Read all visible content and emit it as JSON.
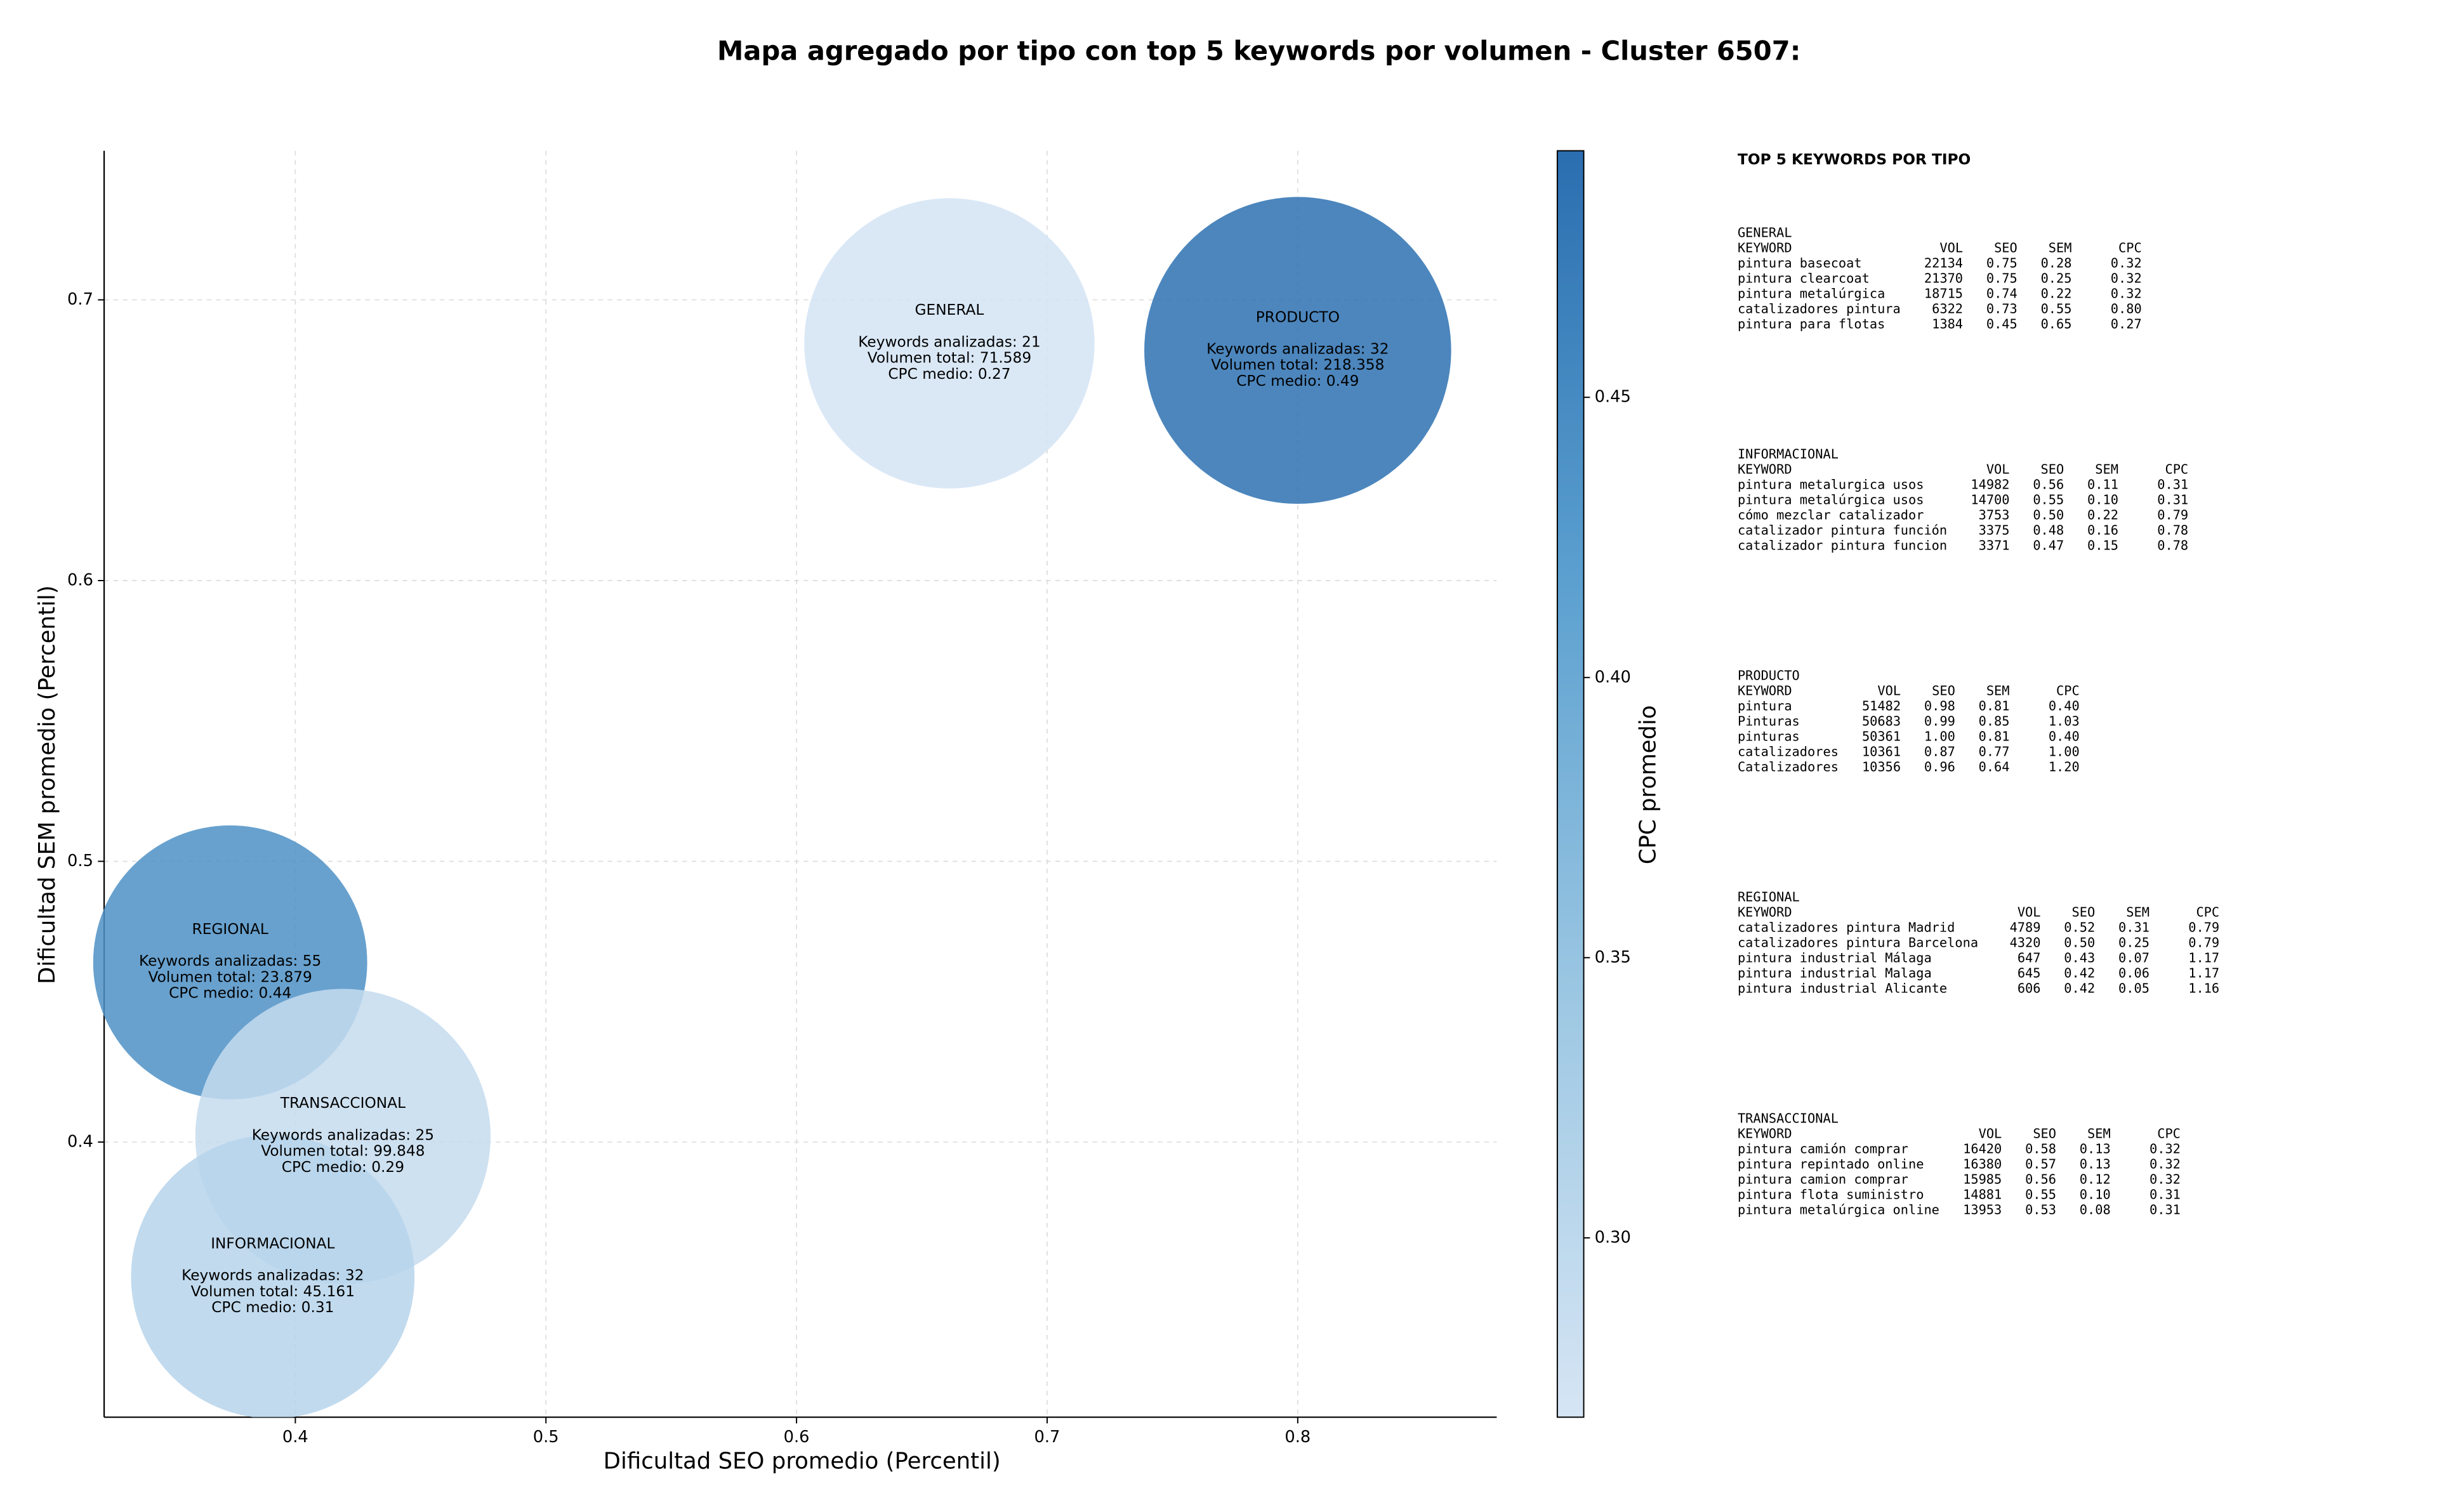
{
  "chart_data": {
    "type": "bubble",
    "title": "Mapa agregado por tipo con top 5 keywords por volumen - Cluster 6507:",
    "x_label": "Dificultad SEO promedio (Percentil)",
    "y_label": "Dificultad SEM promedio (Percentil)",
    "colorbar_label": "CPC promedio",
    "xlim": [
      0.3237,
      0.8794
    ],
    "xticks": [
      0.4,
      0.5,
      0.6,
      0.7,
      0.8
    ],
    "ylim": [
      0.302,
      0.7531
    ],
    "yticks": [
      0.4,
      0.5,
      0.6,
      0.7
    ],
    "clim": [
      0.268,
      0.494
    ],
    "cticks": [
      {
        "value": 0.3,
        "label": "0.30"
      },
      {
        "value": 0.35,
        "label": "0.35"
      },
      {
        "value": 0.4,
        "label": "0.40"
      },
      {
        "value": 0.45,
        "label": "0.45"
      }
    ],
    "colormap": [
      "#d6e5f4",
      "#9cc7e3",
      "#5a9fcf",
      "#2b6eb0"
    ],
    "grid": true,
    "bubbles": [
      {
        "name": "GENERAL",
        "x": 0.661,
        "y": 0.6845,
        "volume": 71589,
        "cpc": 0.27,
        "lines": [
          "Keywords analizadas: 21",
          "Volumen total: 71.589",
          "CPC medio: 0.27"
        ]
      },
      {
        "name": "PRODUCTO",
        "x": 0.8,
        "y": 0.682,
        "volume": 218358,
        "cpc": 0.49,
        "lines": [
          "Keywords analizadas: 32",
          "Volumen total: 218.358",
          "CPC medio: 0.49"
        ]
      },
      {
        "name": "REGIONAL",
        "x": 0.374,
        "y": 0.464,
        "volume": 23879,
        "cpc": 0.44,
        "lines": [
          "Keywords analizadas: 55",
          "Volumen total: 23.879",
          "CPC medio: 0.44"
        ]
      },
      {
        "name": "TRANSACCIONAL",
        "x": 0.419,
        "y": 0.402,
        "volume": 99848,
        "cpc": 0.29,
        "lines": [
          "Keywords analizadas: 25",
          "Volumen total: 99.848",
          "CPC medio: 0.29"
        ]
      },
      {
        "name": "INFORMACIONAL",
        "x": 0.391,
        "y": 0.352,
        "volume": 45161,
        "cpc": 0.31,
        "lines": [
          "Keywords analizadas: 32",
          "Volumen total: 45.161",
          "CPC medio: 0.31"
        ]
      }
    ]
  },
  "panel": {
    "title": "TOP 5 KEYWORDS POR TIPO",
    "columns": [
      "KEYWORD",
      "VOL",
      "SEO",
      "SEM",
      "CPC"
    ],
    "blocks": [
      {
        "name": "GENERAL",
        "rows": [
          [
            "pintura basecoat",
            "22134",
            "0.75",
            "0.28",
            "0.32"
          ],
          [
            "pintura clearcoat",
            "21370",
            "0.75",
            "0.25",
            "0.32"
          ],
          [
            "pintura metalúrgica",
            "18715",
            "0.74",
            "0.22",
            "0.32"
          ],
          [
            "catalizadores pintura",
            "6322",
            "0.73",
            "0.55",
            "0.80"
          ],
          [
            "pintura para flotas",
            "1384",
            "0.45",
            "0.65",
            "0.27"
          ]
        ]
      },
      {
        "name": "INFORMACIONAL",
        "rows": [
          [
            "pintura metalurgica usos",
            "14982",
            "0.56",
            "0.11",
            "0.31"
          ],
          [
            "pintura metalúrgica usos",
            "14700",
            "0.55",
            "0.10",
            "0.31"
          ],
          [
            "cómo mezclar catalizador",
            "3753",
            "0.50",
            "0.22",
            "0.79"
          ],
          [
            "catalizador pintura función",
            "3375",
            "0.48",
            "0.16",
            "0.78"
          ],
          [
            "catalizador pintura funcion",
            "3371",
            "0.47",
            "0.15",
            "0.78"
          ]
        ]
      },
      {
        "name": "PRODUCTO",
        "rows": [
          [
            "pintura",
            "51482",
            "0.98",
            "0.81",
            "0.40"
          ],
          [
            "Pinturas",
            "50683",
            "0.99",
            "0.85",
            "1.03"
          ],
          [
            "pinturas",
            "50361",
            "1.00",
            "0.81",
            "0.40"
          ],
          [
            "catalizadores",
            "10361",
            "0.87",
            "0.77",
            "1.00"
          ],
          [
            "Catalizadores",
            "10356",
            "0.96",
            "0.64",
            "1.20"
          ]
        ]
      },
      {
        "name": "REGIONAL",
        "rows": [
          [
            "catalizadores pintura Madrid",
            "4789",
            "0.52",
            "0.31",
            "0.79"
          ],
          [
            "catalizadores pintura Barcelona",
            "4320",
            "0.50",
            "0.25",
            "0.79"
          ],
          [
            "pintura industrial Málaga",
            "647",
            "0.43",
            "0.07",
            "1.17"
          ],
          [
            "pintura industrial Malaga",
            "645",
            "0.42",
            "0.06",
            "1.17"
          ],
          [
            "pintura industrial Alicante",
            "606",
            "0.42",
            "0.05",
            "1.16"
          ]
        ]
      },
      {
        "name": "TRANSACCIONAL",
        "rows": [
          [
            "pintura camión comprar",
            "16420",
            "0.58",
            "0.13",
            "0.32"
          ],
          [
            "pintura repintado online",
            "16380",
            "0.57",
            "0.13",
            "0.32"
          ],
          [
            "pintura camion comprar",
            "15985",
            "0.56",
            "0.12",
            "0.32"
          ],
          [
            "pintura flota suministro",
            "14881",
            "0.55",
            "0.10",
            "0.31"
          ],
          [
            "pintura metalúrgica online",
            "13953",
            "0.53",
            "0.08",
            "0.31"
          ]
        ]
      }
    ]
  }
}
